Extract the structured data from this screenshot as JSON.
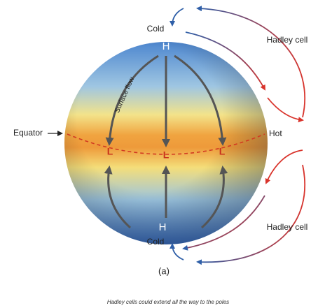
{
  "labels": {
    "cold_top": "Cold",
    "h_top": "H",
    "surface_flow": "Surface flow",
    "equator": "Equator",
    "hot": "Hot",
    "l_left": "L",
    "l_center": "L",
    "l_right": "L",
    "h_bottom": "H",
    "cold_bottom": "Cold",
    "hadley_top": "Hadley cell",
    "hadley_bottom": "Hadley cell",
    "panel": "(a)"
  },
  "caption": "Hadley cells could extend all the way to the poles"
}
